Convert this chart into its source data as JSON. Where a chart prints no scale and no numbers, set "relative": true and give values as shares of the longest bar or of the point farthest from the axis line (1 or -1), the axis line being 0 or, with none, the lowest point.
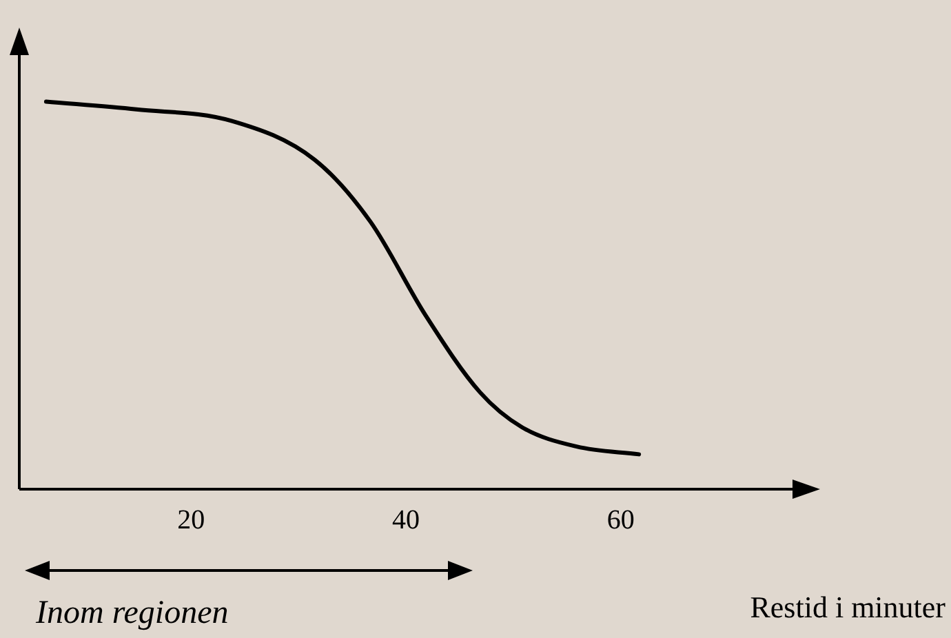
{
  "chart_data": {
    "type": "line",
    "relative": true,
    "xlabel": "Restid i minuter",
    "annotations": [
      "Inom regionen"
    ],
    "x": [
      6.5,
      14.9,
      23.8,
      31.5,
      36.7,
      41.8,
      46.9,
      50.8,
      55.9,
      61.7
    ],
    "xlim": [
      4,
      76
    ],
    "xticks": [
      20,
      40,
      60
    ],
    "grid": false,
    "legend": false,
    "marker": "none",
    "line_style": "solid",
    "series": [
      {
        "color": "#000000",
        "values": [
          1.0,
          0.98,
          0.95,
          0.85,
          0.69,
          0.45,
          0.25,
          0.16,
          0.11,
          0.09
        ]
      }
    ]
  }
}
